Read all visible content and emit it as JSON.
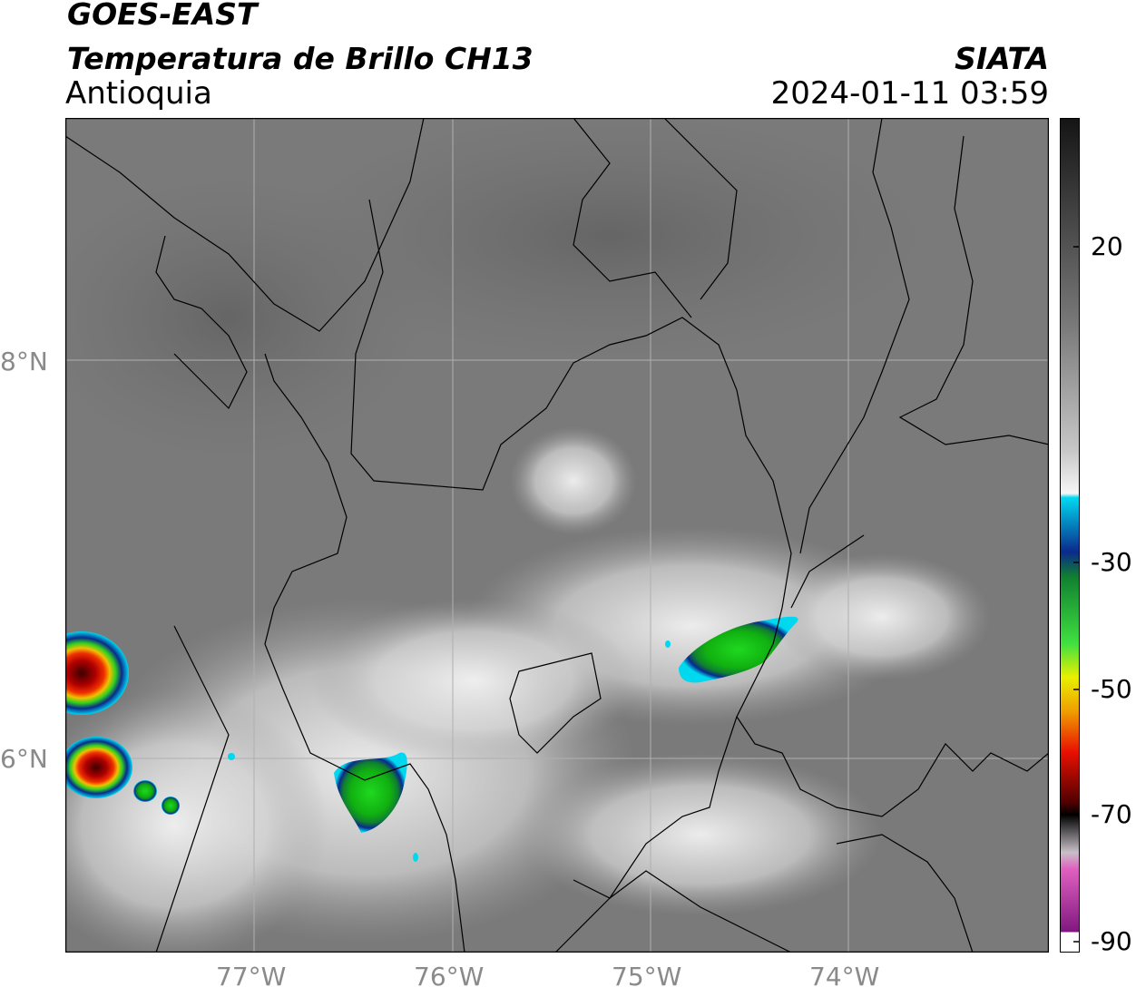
{
  "header": {
    "satellite": "GOES-EAST",
    "product": "Temperatura de Brillo CH13",
    "region": "Antioquia",
    "organization": "SIATA",
    "datetime": "2024-01-11 03:59"
  },
  "axes": {
    "lat_ticks": [
      "8°N",
      "6°N"
    ],
    "lon_ticks": [
      "77°W",
      "76°W",
      "75°W",
      "74°W"
    ]
  },
  "colorbar": {
    "ticks": [
      "20",
      "-30",
      "-50",
      "-70",
      "-90"
    ],
    "colors": {
      "warm_dark": "#1e1e1e",
      "gray": "#8c8c8c",
      "white": "#f4f4f4",
      "cyan": "#00d8f0",
      "blue": "#0a2a8c",
      "green": "#14c814",
      "yellow": "#f0f000",
      "orange": "#f08c00",
      "red": "#e00000",
      "darkred": "#500000",
      "black": "#000000",
      "pink": "#e060c0",
      "purple": "#801880"
    }
  },
  "map": {
    "background": "#7a7a7a",
    "gridline_color": "#b0b0b0",
    "border_color": "#000000"
  }
}
